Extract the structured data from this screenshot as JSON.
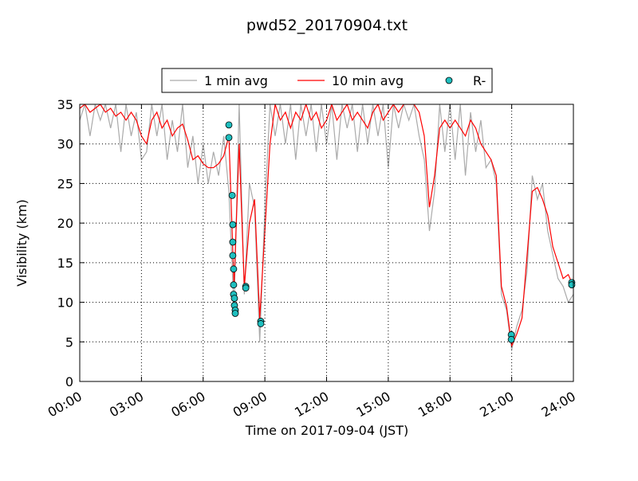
{
  "chart_data": {
    "type": "line",
    "title": "pwd52_20170904.txt",
    "x_label": "Time on 2017-09-04 (JST)",
    "y_label": "Visibility (km)",
    "x": [
      0,
      0.25,
      0.5,
      0.75,
      1,
      1.25,
      1.5,
      1.75,
      2,
      2.25,
      2.5,
      2.75,
      3,
      3.25,
      3.5,
      3.75,
      4,
      4.25,
      4.5,
      4.75,
      5,
      5.25,
      5.5,
      5.75,
      6,
      6.25,
      6.5,
      6.75,
      7,
      7.25,
      7.5,
      7.75,
      8,
      8.25,
      8.5,
      8.75,
      9,
      9.25,
      9.5,
      9.75,
      10,
      10.25,
      10.5,
      10.75,
      11,
      11.25,
      11.5,
      11.75,
      12,
      12.25,
      12.5,
      12.75,
      13,
      13.25,
      13.5,
      13.75,
      14,
      14.25,
      14.5,
      14.75,
      15,
      15.25,
      15.5,
      15.75,
      16,
      16.25,
      16.5,
      16.75,
      17,
      17.25,
      17.5,
      17.75,
      18,
      18.25,
      18.5,
      18.75,
      19,
      19.25,
      19.5,
      19.75,
      20,
      20.25,
      20.5,
      20.75,
      21,
      21.25,
      21.5,
      21.75,
      22,
      22.25,
      22.5,
      22.75,
      23,
      23.25,
      23.5,
      23.75,
      24
    ],
    "series": [
      {
        "name": "1 min avg",
        "color": "#aaaaaa",
        "values": [
          33,
          35,
          31,
          35,
          33,
          35,
          32,
          35,
          29,
          35,
          31,
          34,
          28,
          29,
          35,
          31,
          35,
          28,
          33,
          29,
          35,
          27,
          31,
          25,
          30,
          25,
          29,
          26,
          31,
          24,
          9,
          35,
          11,
          25,
          22,
          5,
          22,
          35,
          31,
          35,
          30,
          35,
          28,
          35,
          31,
          35,
          29,
          35,
          30,
          35,
          28,
          35,
          32,
          35,
          29,
          35,
          30,
          35,
          31,
          35,
          27,
          35,
          32,
          35,
          33,
          35,
          31,
          28,
          19,
          24,
          35,
          29,
          35,
          28,
          35,
          26,
          34,
          29,
          33,
          27,
          28,
          25,
          11,
          9,
          4,
          7,
          9,
          14,
          26,
          23,
          25,
          19,
          16,
          13,
          12,
          10,
          11
        ]
      },
      {
        "name": "10 min avg",
        "color": "#ff0000",
        "values": [
          34.5,
          35,
          34,
          34.5,
          35,
          34,
          34.5,
          33.5,
          34,
          33,
          34,
          33,
          31,
          30,
          33,
          34,
          32,
          33,
          31,
          32,
          32.5,
          30.5,
          28,
          28.5,
          27.5,
          27,
          27,
          27.5,
          28.5,
          31,
          12,
          30,
          12,
          20,
          23,
          8,
          19,
          30,
          35,
          33,
          34,
          32,
          34,
          33,
          35,
          33,
          34,
          32,
          33,
          35,
          33,
          34,
          35,
          33,
          34,
          33,
          32,
          34,
          35,
          33,
          34,
          35,
          34,
          35,
          35,
          35,
          34,
          31,
          22,
          26,
          32,
          33,
          32,
          33,
          32,
          31,
          33,
          32,
          30,
          29,
          28,
          26,
          12,
          9.5,
          4.5,
          6,
          8,
          16,
          24,
          24.5,
          23,
          21,
          17,
          15,
          13,
          13.5,
          12
        ]
      },
      {
        "name": "R-",
        "type": "scatter",
        "color": "#1fbfbf",
        "x": [
          7.25,
          7.25,
          7.41,
          7.44,
          7.44,
          7.44,
          7.48,
          7.48,
          7.48,
          7.52,
          7.52,
          7.56,
          7.56,
          8.07,
          8.07,
          8.8,
          8.8,
          20.98,
          20.98,
          23.92,
          23.92
        ],
        "values": [
          32.4,
          30.8,
          23.5,
          19.8,
          17.6,
          15.9,
          14.2,
          12.2,
          11,
          10.5,
          9.6,
          9,
          8.6,
          12,
          11.8,
          7.6,
          7.3,
          5.9,
          5.3,
          12.5,
          12.2
        ]
      }
    ],
    "xlim": [
      0,
      24
    ],
    "xticks": [
      {
        "value": 0,
        "label": "00:00"
      },
      {
        "value": 3,
        "label": "03:00"
      },
      {
        "value": 6,
        "label": "06:00"
      },
      {
        "value": 9,
        "label": "09:00"
      },
      {
        "value": 12,
        "label": "12:00"
      },
      {
        "value": 15,
        "label": "15:00"
      },
      {
        "value": 18,
        "label": "18:00"
      },
      {
        "value": 21,
        "label": "21:00"
      },
      {
        "value": 24,
        "label": "24:00"
      }
    ],
    "ylim": [
      0,
      35
    ],
    "yticks": [
      0,
      5,
      10,
      15,
      20,
      25,
      30,
      35
    ],
    "grid": true,
    "legend": "top"
  }
}
